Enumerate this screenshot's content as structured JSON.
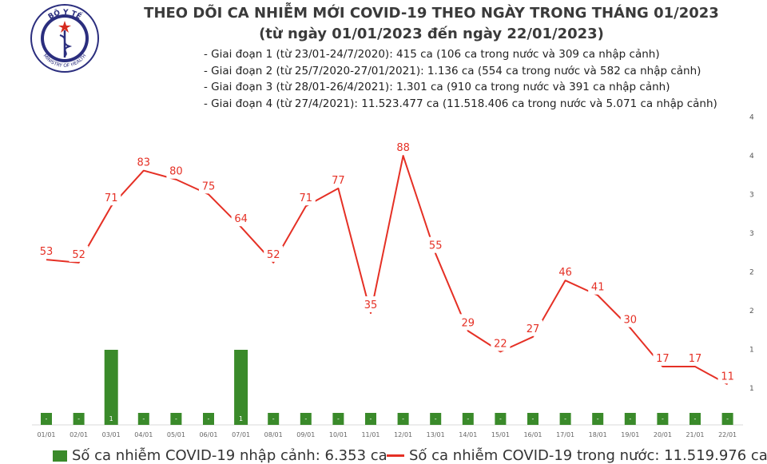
{
  "logo": {
    "text": "BỘ Y TẾ",
    "bottom_text": "MINISTRY OF HEALTH",
    "icon": "ministry-of-health-emblem",
    "colors": {
      "navy": "#2b2e7e",
      "red": "#d62a1e",
      "star": "#f6d31b"
    }
  },
  "header": {
    "title": "THEO DÕI CA NHIỄM MỚI COVID-19 THEO NGÀY TRONG THÁNG 01/2023",
    "subtitle": "(từ ngày 01/01/2023 đến ngày 22/01/2023)"
  },
  "notes": [
    "- Giai đoạn 1 (từ 23/01-24/7/2020): 415 ca (106 ca trong nước và 309 ca nhập cảnh)",
    "- Giai đoạn 2 (từ 25/7/2020-27/01/2021): 1.136 ca (554 ca trong nước và 582 ca nhập cảnh)",
    "- Giai đoạn 3 (từ 28/01-26/4/2021): 1.301 ca (910 ca trong nước và 391 ca nhập cảnh)",
    "- Giai đoạn 4 (từ 27/4/2021): 11.523.477 ca (11.518.406 ca trong nước và 5.071 ca nhập cảnh)"
  ],
  "legend": {
    "bar_label": "Số ca nhiễm COVID-19 nhập cảnh: 6.353 ca",
    "line_label": "Số ca nhiễm COVID-19 trong nước: 11.519.976 ca"
  },
  "chart_data": {
    "type": "bar+line",
    "categories": [
      "01/01",
      "02/01",
      "03/01",
      "04/01",
      "05/01",
      "06/01",
      "07/01",
      "08/01",
      "09/01",
      "10/01",
      "11/01",
      "12/01",
      "13/01",
      "14/01",
      "15/01",
      "16/01",
      "17/01",
      "18/01",
      "19/01",
      "20/01",
      "21/01",
      "22/01"
    ],
    "series": [
      {
        "kind": "bar",
        "values": [
          0,
          0,
          1,
          0,
          0,
          0,
          1,
          0,
          0,
          0,
          0,
          0,
          0,
          0,
          0,
          0,
          0,
          0,
          0,
          0,
          0,
          0
        ],
        "labels": [
          "-",
          "-",
          "1",
          "-",
          "-",
          "-",
          "1",
          "-",
          "-",
          "-",
          "-",
          "-",
          "-",
          "-",
          "-",
          "-",
          "-",
          "-",
          "-",
          "-",
          "-",
          "-"
        ],
        "color": "#3a8a2a",
        "ylim": [
          0,
          2
        ]
      },
      {
        "kind": "line",
        "values": [
          53,
          52,
          71,
          83,
          80,
          75,
          64,
          52,
          71,
          77,
          35,
          88,
          55,
          29,
          22,
          27,
          46,
          41,
          30,
          17,
          17,
          11
        ],
        "color": "#e53025",
        "label_color": "#e53025"
      }
    ],
    "right_axis_ticks": [
      "1",
      "1",
      "2",
      "2",
      "3",
      "3",
      "4",
      "4"
    ]
  }
}
